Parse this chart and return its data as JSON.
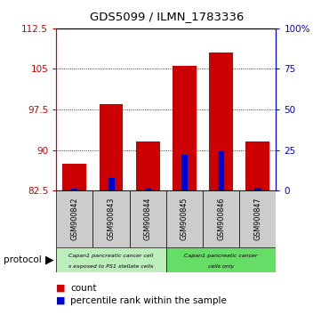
{
  "title": "GDS5099 / ILMN_1783336",
  "samples": [
    "GSM900842",
    "GSM900843",
    "GSM900844",
    "GSM900845",
    "GSM900846",
    "GSM900847"
  ],
  "count_values": [
    87.5,
    98.5,
    91.5,
    105.5,
    108.0,
    91.5
  ],
  "percentile_values": [
    1.0,
    7.5,
    1.5,
    22.0,
    24.0,
    2.0
  ],
  "ylim_left": [
    82.5,
    112.5
  ],
  "yticks_left": [
    82.5,
    90,
    97.5,
    105,
    112.5
  ],
  "yticks_right": [
    0,
    25,
    50,
    75,
    100
  ],
  "ylim_right": [
    0,
    100
  ],
  "bar_bottom": 82.5,
  "red_color": "#cc0000",
  "blue_color": "#0000cc",
  "group1_color": "#bbeebb",
  "group2_color": "#66dd66",
  "sample_box_color": "#cccccc",
  "bg_color": "#ffffff",
  "grid_color": "#000000",
  "tick_label_color_left": "#cc0000",
  "tick_label_color_right": "#0000cc",
  "group1_label_line1": "Capan1 pancreatic cancer cell",
  "group1_label_line2": "s exposed to PS1 stellate cells",
  "group2_label_line1": "Capan1 pancreatic cancer",
  "group2_label_line2": "cells only"
}
